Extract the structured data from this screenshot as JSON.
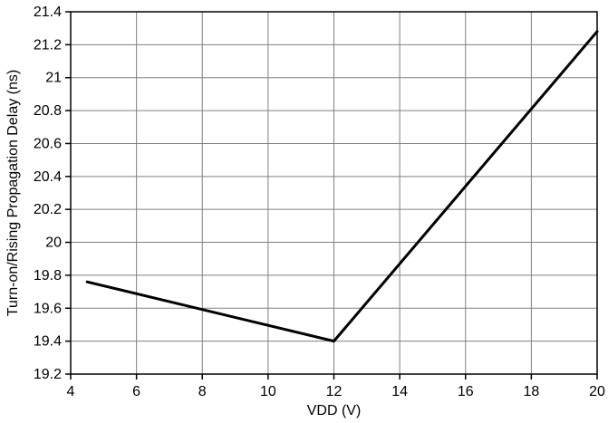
{
  "chart_data": {
    "type": "line",
    "title": "",
    "xlabel": "VDD (V)",
    "ylabel": "Turn-on/Rising Propagation Delay (ns)",
    "xlim": [
      4,
      20
    ],
    "ylim": [
      19.2,
      21.4
    ],
    "grid": true,
    "legend": false,
    "xticks": [
      4,
      6,
      8,
      10,
      12,
      14,
      16,
      18,
      20
    ],
    "xtick_labels": [
      "4",
      "6",
      "8",
      "10",
      "12",
      "14",
      "16",
      "18",
      "20"
    ],
    "yticks": [
      19.2,
      19.4,
      19.6,
      19.8,
      20,
      20.2,
      20.4,
      20.6,
      20.8,
      21,
      21.2,
      21.4
    ],
    "ytick_labels": [
      "19.2",
      "19.4",
      "19.6",
      "19.8",
      "20",
      "20.2",
      "20.4",
      "20.6",
      "20.8",
      "21",
      "21.2",
      "21.4"
    ],
    "series": [
      {
        "name": "Turn-on/Rising Propagation Delay",
        "color": "#000000",
        "x": [
          4.5,
          12,
          20
        ],
        "y": [
          19.76,
          19.4,
          21.28
        ]
      }
    ]
  },
  "colors": {
    "background": "#ffffff",
    "grid": "#808080",
    "axis": "#000000",
    "text": "#000000"
  }
}
